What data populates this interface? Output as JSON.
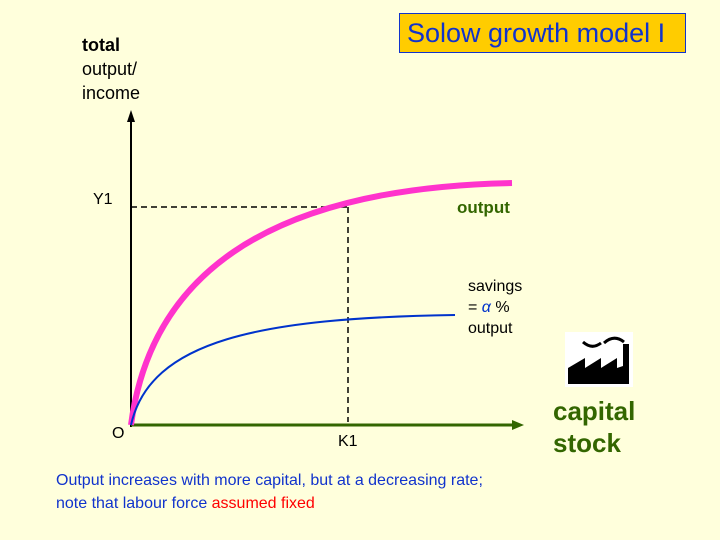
{
  "title": "Solow growth model I",
  "y_axis": {
    "label_bold": "total",
    "label_line2": "output/",
    "label_line3": "income",
    "tick": "Y1"
  },
  "x_axis": {
    "origin": "O",
    "tick": "K1",
    "label_line1": "capital",
    "label_line2": "stock"
  },
  "curves": {
    "output": {
      "label": "output",
      "color": "#FF33CC"
    },
    "savings": {
      "label_line1": "savings",
      "label_eq": "=",
      "label_symbol": "α",
      "label_pct": "%",
      "label_line3": "output",
      "color": "#0033CC"
    }
  },
  "icon": "factory-icon",
  "caption": {
    "line1": "Output increases with more capital, but at a decreasing rate;",
    "line2_prefix": "note that labour force ",
    "line2_highlight": "assumed fixed"
  },
  "colors": {
    "background": "#FFFFDC",
    "title_bg": "#FFCC00",
    "title_text": "#1133CC",
    "axis_x": "#336600",
    "highlight": "#FF0000"
  }
}
